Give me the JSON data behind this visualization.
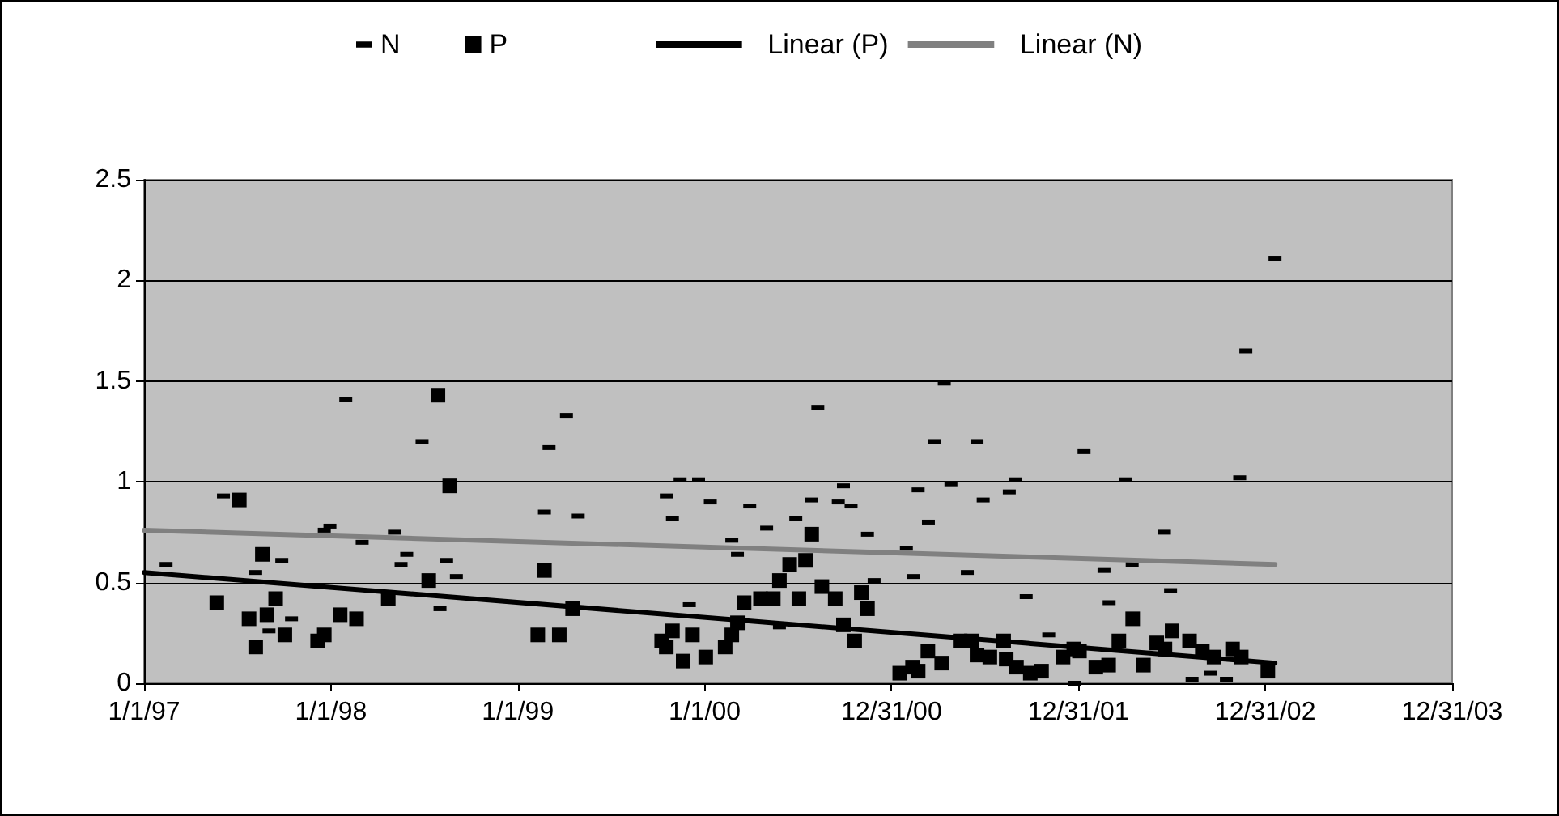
{
  "chart_data": {
    "type": "scatter",
    "legend": "top",
    "grid": "y",
    "xlim": [
      "1997-01-01",
      "2003-12-31"
    ],
    "xticks": [
      {
        "value": "1997-01-01",
        "label": "1/1/97"
      },
      {
        "value": "1998-01-01",
        "label": "1/1/98"
      },
      {
        "value": "1999-01-01",
        "label": "1/1/99"
      },
      {
        "value": "2000-01-01",
        "label": "1/1/00"
      },
      {
        "value": "2000-12-31",
        "label": "12/31/00"
      },
      {
        "value": "2001-12-31",
        "label": "12/31/01"
      },
      {
        "value": "2002-12-31",
        "label": "12/31/02"
      },
      {
        "value": "2003-12-31",
        "label": "12/31/03"
      }
    ],
    "ylim": [
      0,
      2.5
    ],
    "yticks": [
      0,
      0.5,
      1,
      1.5,
      2,
      2.5
    ],
    "series": [
      {
        "name": "N",
        "color": "#000000",
        "x": [
          "1997-02-13",
          "1997-06-05",
          "1997-08-07",
          "1997-09-02",
          "1997-09-27",
          "1997-10-16",
          "1997-12-19",
          "1997-12-30",
          "1998-01-30",
          "1998-03-03",
          "1998-05-05",
          "1998-05-18",
          "1998-05-29",
          "1998-06-28",
          "1998-08-02",
          "1998-08-15",
          "1998-09-03",
          "1999-02-22",
          "1999-03-03",
          "1999-04-06",
          "1999-04-29",
          "1999-10-18",
          "1999-10-30",
          "1999-11-14",
          "1999-12-02",
          "1999-12-20",
          "2000-01-12",
          "2000-02-23",
          "2000-03-05",
          "2000-03-29",
          "2000-05-01",
          "2000-05-26",
          "2000-06-27",
          "2000-07-28",
          "2000-08-09",
          "2000-09-18",
          "2000-09-28",
          "2000-10-13",
          "2000-11-14",
          "2000-11-27",
          "2001-01-29",
          "2001-02-11",
          "2001-02-21",
          "2001-03-13",
          "2001-03-25",
          "2001-04-13",
          "2001-04-26",
          "2001-05-28",
          "2001-06-16",
          "2001-06-28",
          "2001-08-18",
          "2001-08-30",
          "2001-09-20",
          "2001-11-03",
          "2001-12-23",
          "2002-01-11",
          "2002-02-19",
          "2002-03-01",
          "2002-04-02",
          "2002-04-15",
          "2002-06-17",
          "2002-06-29",
          "2002-08-10",
          "2002-09-15",
          "2002-10-16",
          "2002-11-11",
          "2002-11-23",
          "2003-01-19"
        ],
        "values": [
          0.59,
          0.93,
          0.55,
          0.26,
          0.61,
          0.32,
          0.76,
          0.78,
          1.41,
          0.7,
          0.75,
          0.59,
          0.64,
          1.2,
          0.37,
          0.61,
          0.53,
          0.85,
          1.17,
          1.33,
          0.83,
          0.93,
          0.82,
          1.01,
          0.39,
          1.01,
          0.9,
          0.71,
          0.64,
          0.88,
          0.77,
          0.28,
          0.82,
          0.91,
          1.37,
          0.9,
          0.98,
          0.88,
          0.74,
          0.51,
          0.67,
          0.53,
          0.96,
          0.8,
          1.2,
          1.49,
          0.99,
          0.55,
          1.2,
          0.91,
          0.95,
          1.01,
          0.43,
          0.24,
          0,
          1.15,
          0.56,
          0.4,
          1.01,
          0.59,
          0.75,
          0.46,
          0.02,
          0.05,
          0.02,
          1.02,
          1.65,
          2.11
        ]
      },
      {
        "name": "P",
        "color": "#000000",
        "marker": "square",
        "x": [
          "1997-05-23",
          "1997-07-06",
          "1997-07-25",
          "1997-08-07",
          "1997-08-20",
          "1997-08-29",
          "1997-09-15",
          "1997-10-03",
          "1997-12-06",
          "1997-12-19",
          "1998-01-19",
          "1998-02-20",
          "1998-04-23",
          "1998-07-11",
          "1998-07-29",
          "1998-08-21",
          "1999-02-09",
          "1999-02-22",
          "1999-03-23",
          "1999-04-18",
          "1999-10-09",
          "1999-10-18",
          "1999-10-30",
          "1999-11-20",
          "1999-12-08",
          "2000-01-03",
          "2000-02-10",
          "2000-02-23",
          "2000-03-05",
          "2000-03-18",
          "2000-04-19",
          "2000-05-14",
          "2000-05-26",
          "2000-06-15",
          "2000-07-03",
          "2000-07-16",
          "2000-07-28",
          "2000-08-17",
          "2000-09-12",
          "2000-09-28",
          "2000-10-20",
          "2000-11-02",
          "2000-11-14",
          "2001-01-16",
          "2001-02-10",
          "2001-02-21",
          "2001-03-12",
          "2001-04-08",
          "2001-05-14",
          "2001-06-05",
          "2001-06-16",
          "2001-07-11",
          "2001-08-07",
          "2001-08-12",
          "2001-09-01",
          "2001-09-28",
          "2001-10-20",
          "2001-12-01",
          "2001-12-22",
          "2002-01-02",
          "2002-02-03",
          "2002-02-28",
          "2002-03-20",
          "2002-04-16",
          "2002-05-07",
          "2002-06-02",
          "2002-06-18",
          "2002-07-02",
          "2002-08-05",
          "2002-08-30",
          "2002-09-22",
          "2002-10-28",
          "2002-11-14",
          "2003-01-05"
        ],
        "values": [
          0.4,
          0.91,
          0.32,
          0.18,
          0.64,
          0.34,
          0.42,
          0.24,
          0.21,
          0.24,
          0.34,
          0.32,
          0.42,
          0.51,
          1.43,
          0.98,
          0.24,
          0.56,
          0.24,
          0.37,
          0.21,
          0.18,
          0.26,
          0.11,
          0.24,
          0.13,
          0.18,
          0.24,
          0.3,
          0.4,
          0.42,
          0.42,
          0.51,
          0.59,
          0.42,
          0.61,
          0.74,
          0.48,
          0.42,
          0.29,
          0.21,
          0.45,
          0.37,
          0.05,
          0.08,
          0.06,
          0.16,
          0.1,
          0.21,
          0.21,
          0.14,
          0.13,
          0.21,
          0.12,
          0.08,
          0.05,
          0.06,
          0.13,
          0.17,
          0.16,
          0.08,
          0.09,
          0.21,
          0.32,
          0.09,
          0.2,
          0.17,
          0.26,
          0.21,
          0.16,
          0.13,
          0.17,
          0.13,
          0.06
        ]
      },
      {
        "name": "Linear (P)",
        "type": "line",
        "color": "#000000",
        "marker": "none",
        "line_style": "solid",
        "x": [
          "1997-01-01",
          "2003-01-19"
        ],
        "values": [
          0.55,
          0.1
        ]
      },
      {
        "name": "Linear (N)",
        "type": "line",
        "color": "#808080",
        "marker": "none",
        "line_style": "solid",
        "x": [
          "1997-01-01",
          "2003-01-19"
        ],
        "values": [
          0.76,
          0.59
        ]
      }
    ]
  }
}
